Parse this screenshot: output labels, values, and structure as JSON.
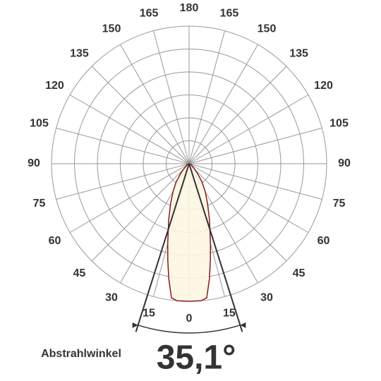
{
  "chart_data": {
    "type": "polar",
    "angle_ticks": [
      0,
      15,
      30,
      45,
      60,
      75,
      90,
      105,
      120,
      135,
      150,
      165,
      180
    ],
    "rlim": [
      0,
      6
    ],
    "rticks": [
      1,
      2,
      3,
      4,
      5,
      6
    ],
    "angles": [
      -90,
      -75,
      -60,
      -45,
      -40,
      -35,
      -30,
      -25,
      -20,
      -15,
      -12.5,
      -10,
      -7.5,
      -5,
      0,
      5,
      7.5,
      10,
      12.5,
      15,
      20,
      25,
      30,
      35,
      40,
      45,
      60,
      75,
      90
    ],
    "values": [
      0,
      0.02,
      0.1,
      0.35,
      0.6,
      1.0,
      1.4,
      1.9,
      2.6,
      3.6,
      4.3,
      5.1,
      5.9,
      6.0,
      6.0,
      6.0,
      5.9,
      5.1,
      4.3,
      3.6,
      2.6,
      1.9,
      1.4,
      1.0,
      0.6,
      0.35,
      0.1,
      0.02,
      0
    ],
    "color": "#8b1a1a",
    "beam_label": "Abstrahlwinkel",
    "beam_angle": {
      "value": 35.1,
      "label": "35,1°"
    }
  }
}
